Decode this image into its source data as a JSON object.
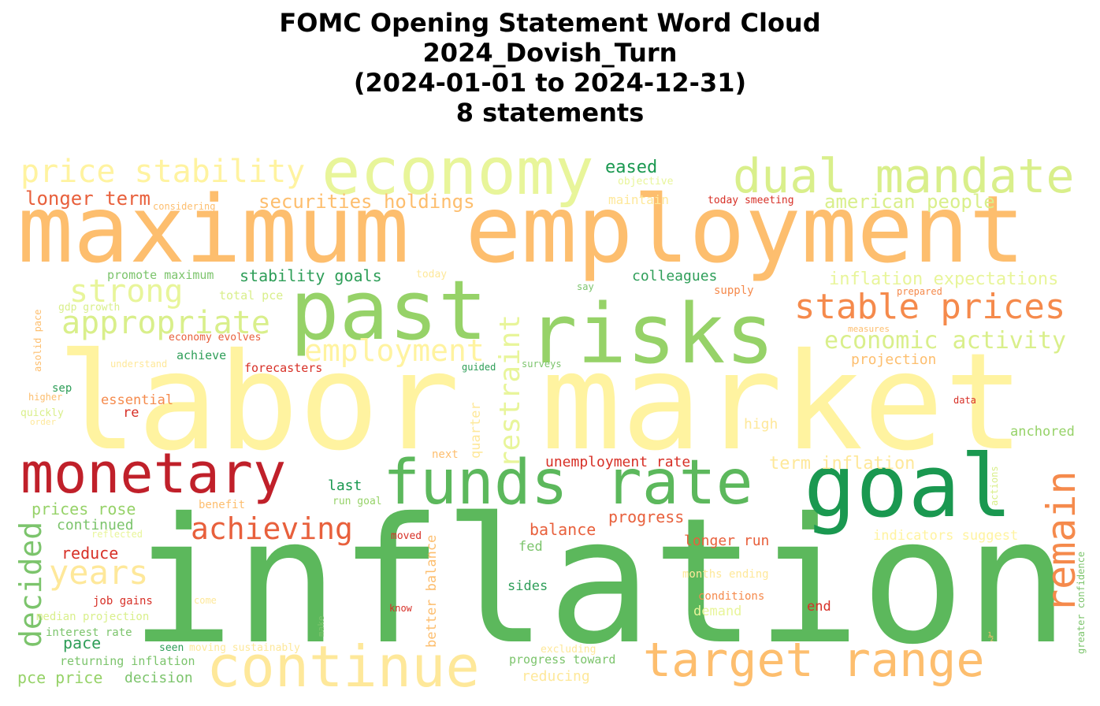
{
  "title": {
    "line1": "FOMC Opening Statement Word Cloud",
    "line2": "2024_Dovish_Turn",
    "line3": "(2024-01-01 to 2024-12-31)",
    "line4": "8 statements"
  },
  "words": [
    {
      "text": "inflation",
      "color": "#5cb85c",
      "vertical": false
    },
    {
      "text": "labor market",
      "color": "#fff3a0",
      "vertical": false
    },
    {
      "text": "maximum employment",
      "color": "#fdbe6e",
      "vertical": false
    },
    {
      "text": "risks",
      "color": "#96d268",
      "vertical": false
    },
    {
      "text": "past",
      "color": "#96d268",
      "vertical": false
    },
    {
      "text": "economy",
      "color": "#e8f59a",
      "vertical": false
    },
    {
      "text": "dual mandate",
      "color": "#d9ef8b",
      "vertical": false
    },
    {
      "text": "price stability",
      "color": "#fff3a0",
      "vertical": false
    },
    {
      "text": "goal",
      "color": "#1a9850",
      "vertical": false
    },
    {
      "text": "monetary",
      "color": "#c0202a",
      "vertical": false
    },
    {
      "text": "funds rate",
      "color": "#5cb85c",
      "vertical": false
    },
    {
      "text": "continue",
      "color": "#fee89a",
      "vertical": false
    },
    {
      "text": "target range",
      "color": "#fdbe6e",
      "vertical": false
    },
    {
      "text": "stable prices",
      "color": "#f58a4c",
      "vertical": false
    },
    {
      "text": "appropriate",
      "color": "#d9ef8b",
      "vertical": false
    },
    {
      "text": "strong",
      "color": "#e8f59a",
      "vertical": false
    },
    {
      "text": "employment",
      "color": "#fff3a0",
      "vertical": false
    },
    {
      "text": "achieving",
      "color": "#e8603c",
      "vertical": false
    },
    {
      "text": "years",
      "color": "#fee89a",
      "vertical": false
    },
    {
      "text": "economic activity",
      "color": "#d9ef8b",
      "vertical": false
    },
    {
      "text": "remain",
      "color": "#f58a4c",
      "vertical": true
    },
    {
      "text": "restraint",
      "color": "#e8f59a",
      "vertical": true
    },
    {
      "text": "decided",
      "color": "#7cc46c",
      "vertical": true
    },
    {
      "text": "longer term",
      "color": "#e8603c",
      "vertical": false
    },
    {
      "text": "securities holdings",
      "color": "#fdbe6e",
      "vertical": false
    },
    {
      "text": "american people",
      "color": "#d9ef8b",
      "vertical": false
    },
    {
      "text": "inflation expectations",
      "color": "#e8f59a",
      "vertical": false
    },
    {
      "text": "stability goals",
      "color": "#2e9e58",
      "vertical": false
    },
    {
      "text": "eased",
      "color": "#1a9850",
      "vertical": false
    },
    {
      "text": "colleagues",
      "color": "#2e9e58",
      "vertical": false
    },
    {
      "text": "unemployment rate",
      "color": "#d73027",
      "vertical": false
    },
    {
      "text": "term inflation",
      "color": "#fee89a",
      "vertical": false
    },
    {
      "text": "projection",
      "color": "#fdbe6e",
      "vertical": false
    },
    {
      "text": "progress",
      "color": "#e8603c",
      "vertical": false
    },
    {
      "text": "balance",
      "color": "#e8603c",
      "vertical": false
    },
    {
      "text": "longer run",
      "color": "#e8603c",
      "vertical": false
    },
    {
      "text": "prices rose",
      "color": "#96d268",
      "vertical": false
    },
    {
      "text": "continued",
      "color": "#7cc46c",
      "vertical": false
    },
    {
      "text": "reduce",
      "color": "#d73027",
      "vertical": false
    },
    {
      "text": "last",
      "color": "#1a9850",
      "vertical": false
    },
    {
      "text": "promote maximum",
      "color": "#7cc46c",
      "vertical": false
    },
    {
      "text": "total pce",
      "color": "#d9ef8b",
      "vertical": false
    },
    {
      "text": "gdp growth",
      "color": "#d9ef8b",
      "vertical": false
    },
    {
      "text": "economy evolves",
      "color": "#e8603c",
      "vertical": false
    },
    {
      "text": "achieve",
      "color": "#2e9e58",
      "vertical": false
    },
    {
      "text": "forecasters",
      "color": "#d73027",
      "vertical": false
    },
    {
      "text": "understand",
      "color": "#fee89a",
      "vertical": false
    },
    {
      "text": "guided",
      "color": "#2e9e58",
      "vertical": false
    },
    {
      "text": "surveys",
      "color": "#7cc46c",
      "vertical": false
    },
    {
      "text": "essential",
      "color": "#f58a4c",
      "vertical": false
    },
    {
      "text": "re",
      "color": "#d73027",
      "vertical": false
    },
    {
      "text": "sep",
      "color": "#2e9e58",
      "vertical": false
    },
    {
      "text": "higher",
      "color": "#fdbe6e",
      "vertical": false
    },
    {
      "text": "quickly",
      "color": "#d9ef8b",
      "vertical": false
    },
    {
      "text": "order",
      "color": "#fee89a",
      "vertical": false
    },
    {
      "text": "asolid pace",
      "color": "#fdbe6e",
      "vertical": true
    },
    {
      "text": "considering",
      "color": "#fdbe6e",
      "vertical": false
    },
    {
      "text": "objective",
      "color": "#e8f59a",
      "vertical": false
    },
    {
      "text": "maintain",
      "color": "#fee89a",
      "vertical": false
    },
    {
      "text": "today",
      "color": "#fee89a",
      "vertical": false
    },
    {
      "text": "today smeeting",
      "color": "#d73027",
      "vertical": false
    },
    {
      "text": "say",
      "color": "#7cc46c",
      "vertical": false
    },
    {
      "text": "supply",
      "color": "#f58a4c",
      "vertical": false
    },
    {
      "text": "prepared",
      "color": "#f58a4c",
      "vertical": false
    },
    {
      "text": "measures",
      "color": "#fdbe6e",
      "vertical": false
    },
    {
      "text": "data",
      "color": "#d73027",
      "vertical": false
    },
    {
      "text": "high",
      "color": "#fee89a",
      "vertical": false
    },
    {
      "text": "anchored",
      "color": "#96d268",
      "vertical": false
    },
    {
      "text": "actions",
      "color": "#d9ef8b",
      "vertical": true
    },
    {
      "text": "quarter",
      "color": "#fee89a",
      "vertical": true
    },
    {
      "text": "next",
      "color": "#fdbe6e",
      "vertical": false
    },
    {
      "text": "benefit",
      "color": "#fdbe6e",
      "vertical": false
    },
    {
      "text": "run goal",
      "color": "#96d268",
      "vertical": false
    },
    {
      "text": "reflected",
      "color": "#e8f59a",
      "vertical": false
    },
    {
      "text": "moved",
      "color": "#d73027",
      "vertical": false
    },
    {
      "text": "fed",
      "color": "#7cc46c",
      "vertical": false
    },
    {
      "text": "indicators suggest",
      "color": "#fff3a0",
      "vertical": false
    },
    {
      "text": "months ending",
      "color": "#fee89a",
      "vertical": false
    },
    {
      "text": "conditions",
      "color": "#f58a4c",
      "vertical": false
    },
    {
      "text": "demand",
      "color": "#e8f59a",
      "vertical": false
    },
    {
      "text": "end",
      "color": "#d73027",
      "vertical": false
    },
    {
      "text": "greater confidence",
      "color": "#7cc46c",
      "vertical": true
    },
    {
      "text": "sides",
      "color": "#2e9e58",
      "vertical": false
    },
    {
      "text": "better balance",
      "color": "#fdbe6e",
      "vertical": true
    },
    {
      "text": "know",
      "color": "#d73027",
      "vertical": false
    },
    {
      "text": "job gains",
      "color": "#d73027",
      "vertical": false
    },
    {
      "text": "come",
      "color": "#fee89a",
      "vertical": false
    },
    {
      "text": "median projection",
      "color": "#d9ef8b",
      "vertical": false
    },
    {
      "text": "interest rate",
      "color": "#7cc46c",
      "vertical": false
    },
    {
      "text": "make",
      "color": "#7cc46c",
      "vertical": true
    },
    {
      "text": "pace",
      "color": "#2e9e58",
      "vertical": false
    },
    {
      "text": "seen",
      "color": "#2e9e58",
      "vertical": false
    },
    {
      "text": "moving sustainably",
      "color": "#fee89a",
      "vertical": false
    },
    {
      "text": "returning inflation",
      "color": "#7cc46c",
      "vertical": false
    },
    {
      "text": "pce price",
      "color": "#96d268",
      "vertical": false
    },
    {
      "text": "decision",
      "color": "#7cc46c",
      "vertical": false
    },
    {
      "text": "excluding",
      "color": "#fee89a",
      "vertical": false
    },
    {
      "text": "progress toward",
      "color": "#7cc46c",
      "vertical": false
    },
    {
      "text": "reducing",
      "color": "#fee89a",
      "vertical": false
    },
    {
      "text": "½",
      "color": "#fdbe6e",
      "vertical": false
    }
  ]
}
